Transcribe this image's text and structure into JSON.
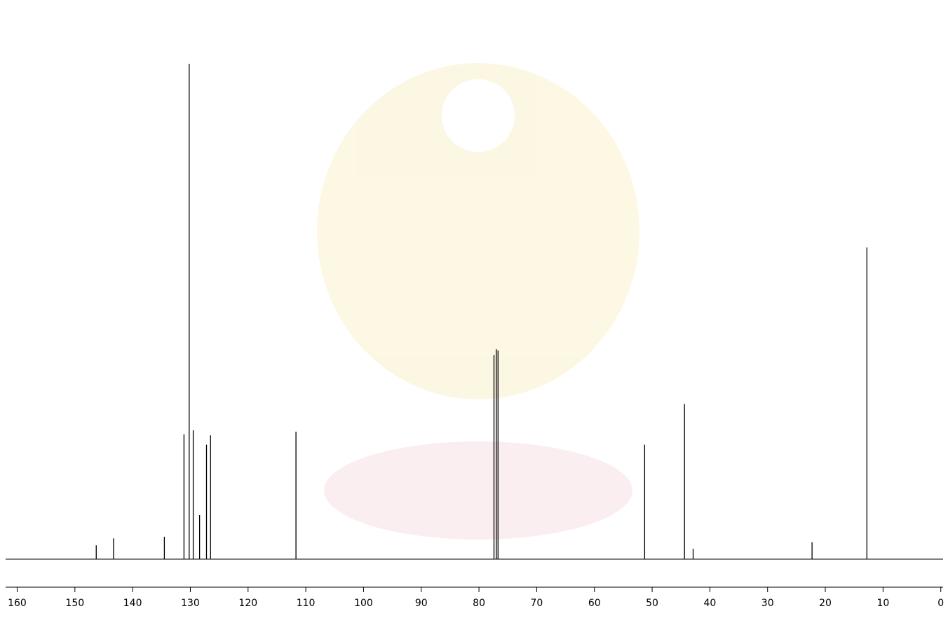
{
  "chart_data": {
    "type": "stem",
    "x": [
      146.3,
      143.3,
      134.5,
      131.1,
      130.2,
      129.5,
      128.4,
      127.2,
      126.5,
      111.7,
      77.4,
      77.0,
      76.7,
      51.3,
      44.4,
      42.9,
      22.3,
      12.8
    ],
    "values": [
      2.8,
      4.2,
      4.5,
      25.2,
      100,
      26.0,
      8.9,
      23.1,
      25.0,
      25.7,
      41.2,
      42.4,
      42.1,
      23.1,
      31.3,
      2.1,
      3.4,
      62.9
    ],
    "color": "#000000",
    "xlim": [
      162,
      -0.4
    ],
    "ylim": [
      0,
      100
    ],
    "xticks": [
      160,
      150,
      140,
      130,
      120,
      110,
      100,
      90,
      80,
      70,
      60,
      50,
      40,
      30,
      20,
      10,
      0
    ]
  }
}
